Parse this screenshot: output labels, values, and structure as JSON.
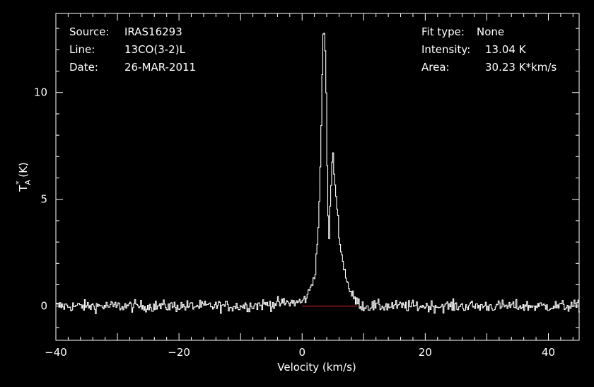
{
  "header": {
    "left": [
      {
        "label": "Source:",
        "value": "IRAS16293"
      },
      {
        "label": "Line:",
        "value": "13CO(3-2)L"
      },
      {
        "label": "Date:",
        "value": "26-MAR-2011"
      }
    ],
    "right": [
      {
        "label": "Fit type:",
        "value": "None"
      },
      {
        "label": "Intensity:",
        "value": "13.04 K"
      },
      {
        "label": "Area:",
        "value": "30.23 K*km/s"
      }
    ]
  },
  "colors": {
    "background": "#000000",
    "spectrum": "#ffffff",
    "fit": "#cc2222"
  },
  "chart_data": {
    "type": "line",
    "title": "",
    "xlabel": "Velocity (km/s)",
    "ylabel": "T_A^* (K)",
    "ylabel_main": "T",
    "ylabel_sub": "A",
    "ylabel_sup": "*",
    "ylabel_unit": " (K)",
    "xlim": [
      -40,
      45
    ],
    "ylim": [
      -1.6,
      13.7
    ],
    "xticks": [
      -40,
      -20,
      0,
      20,
      40
    ],
    "xtick_labels": [
      "−40",
      "−20",
      "0",
      "20",
      "40"
    ],
    "yticks": [
      0,
      5,
      10
    ],
    "ytick_labels": [
      "0",
      "5",
      "10"
    ],
    "grid": false,
    "legend": "none",
    "series": [
      {
        "x": [
          -38,
          -30,
          -20,
          -10,
          0,
          1,
          2,
          2.5,
          3.0,
          3.3,
          3.6,
          3.9,
          4.1,
          4.3,
          4.6,
          4.9,
          5.2,
          5.6,
          6.0,
          6.5,
          7.0,
          7.5,
          8.0,
          9.0,
          10,
          20,
          30,
          40
        ],
        "values": [
          0,
          0,
          0,
          0,
          0.2,
          0.6,
          1.5,
          3.2,
          7.5,
          12.5,
          13.04,
          9.0,
          4.5,
          3.1,
          5.5,
          7.2,
          6.0,
          4.6,
          3.2,
          2.1,
          1.5,
          0.9,
          0.5,
          0.15,
          0,
          0,
          0,
          0
        ]
      }
    ],
    "baseline": {
      "x": [
        0,
        9
      ],
      "value": 0
    }
  }
}
